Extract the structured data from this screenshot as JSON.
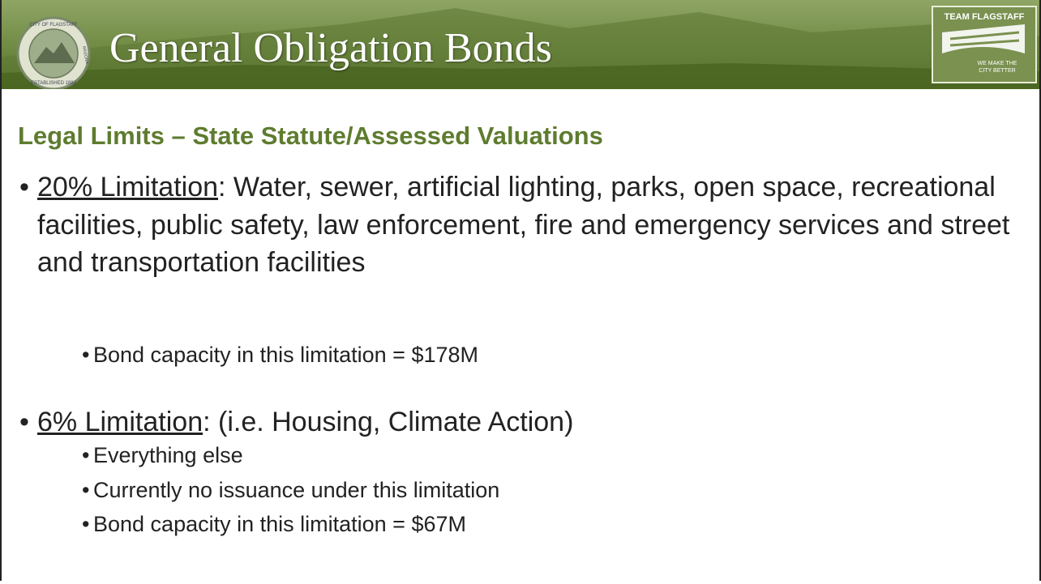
{
  "header": {
    "title": "General Obligation Bonds",
    "seal": {
      "top": "CITY OF FLAGSTAFF",
      "right": "ARIZONA",
      "bottom": "ESTABLISHED 1882"
    },
    "logo": {
      "name": "TEAM FLAGSTAFF",
      "tagline": [
        "WE MAKE THE",
        "CITY BETTER"
      ]
    }
  },
  "subtitle": "Legal Limits – State Statute/Assessed Valuations",
  "bullets": [
    {
      "label": "20% Limitation",
      "text": ": Water, sewer, artificial lighting, parks, open space, recreational facilities, public safety, law enforcement, fire and emergency services and street and transportation facilities",
      "sub": [
        "Bond capacity in this limitation = $178M"
      ]
    },
    {
      "label": "6% Limitation",
      "text": ": (i.e. Housing, Climate Action)",
      "sub": [
        "Everything else",
        "Currently no issuance under this limitation",
        "Bond capacity in this limitation = $67M"
      ]
    }
  ]
}
